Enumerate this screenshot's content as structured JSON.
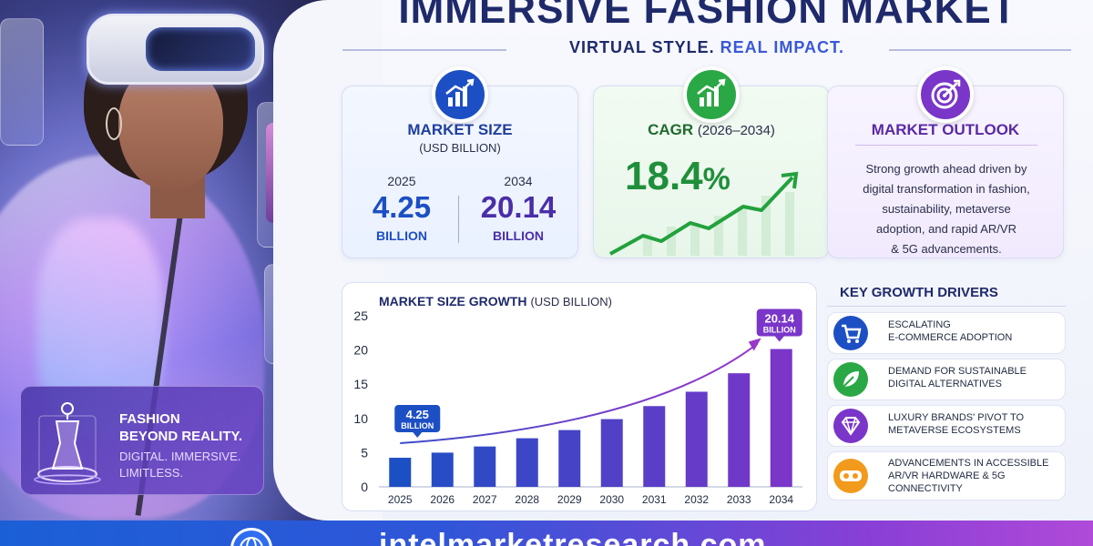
{
  "header": {
    "title": "IMMERSIVE FASHION MARKET",
    "subtitle_a": "VIRTUAL STYLE.",
    "subtitle_b": "REAL IMPACT."
  },
  "hero": {
    "line1": "FASHION",
    "line2": "BEYOND REALITY.",
    "line3": "DIGITAL. IMMERSIVE.",
    "line4": "LIMITLESS."
  },
  "cards": {
    "market_size": {
      "title": "MARKET SIZE",
      "unit": "(USD BILLION)",
      "year_a": "2025",
      "value_a": "4.25",
      "label_a": "BILLION",
      "year_b": "2034",
      "value_b": "20.14",
      "label_b": "BILLION",
      "icon": "bar-chart-icon"
    },
    "cagr": {
      "title": "CAGR",
      "period": "(2026–2034)",
      "value": "18.4",
      "pct": "%",
      "icon": "growth-chart-icon"
    },
    "outlook": {
      "title": "MARKET OUTLOOK",
      "desc_1": "Strong growth ahead driven by",
      "desc_2": "digital transformation in fashion,",
      "desc_3": "sustainability, metaverse",
      "desc_4": "adoption, and rapid AR/VR",
      "desc_5": "& 5G advancements.",
      "icon": "target-icon"
    }
  },
  "chart_data": {
    "type": "bar",
    "title": "MARKET SIZE GROWTH",
    "unit": "(USD BILLION)",
    "categories": [
      "2025",
      "2026",
      "2027",
      "2028",
      "2029",
      "2030",
      "2031",
      "2032",
      "2033",
      "2034"
    ],
    "values": [
      4.25,
      5.0,
      5.9,
      7.1,
      8.3,
      9.9,
      11.8,
      13.9,
      16.6,
      20.14
    ],
    "ylim": [
      0,
      25
    ],
    "yticks": [
      0,
      5,
      10,
      15,
      20,
      25
    ],
    "callout_start": {
      "value": "4.25",
      "label": "BILLION"
    },
    "callout_end": {
      "value": "20.14",
      "label": "BILLION"
    },
    "colors": [
      "#1d4fc4",
      "#7a35c9"
    ]
  },
  "drivers": {
    "title": "KEY GROWTH DRIVERS",
    "items": [
      {
        "line1": "ESCALATING",
        "line2": "E-COMMERCE ADOPTION",
        "line3": "",
        "icon": "cart-icon",
        "color": "#1d4fc4"
      },
      {
        "line1": "DEMAND FOR SUSTAINABLE",
        "line2": "DIGITAL ALTERNATIVES",
        "line3": "",
        "icon": "leaf-icon",
        "color": "#2aa845"
      },
      {
        "line1": "LUXURY BRANDS' PIVOT TO",
        "line2": "METAVERSE ECOSYSTEMS",
        "line3": "",
        "icon": "diamond-icon",
        "color": "#7a35c9"
      },
      {
        "line1": "ADVANCEMENTS IN ACCESSIBLE",
        "line2": "AR/VR HARDWARE & 5G",
        "line3": "CONNECTIVITY",
        "icon": "vr-headset-icon",
        "color": "#f29a1c"
      }
    ]
  },
  "footer": {
    "url": "intelmarketresearch.com",
    "icon": "globe-icon"
  }
}
